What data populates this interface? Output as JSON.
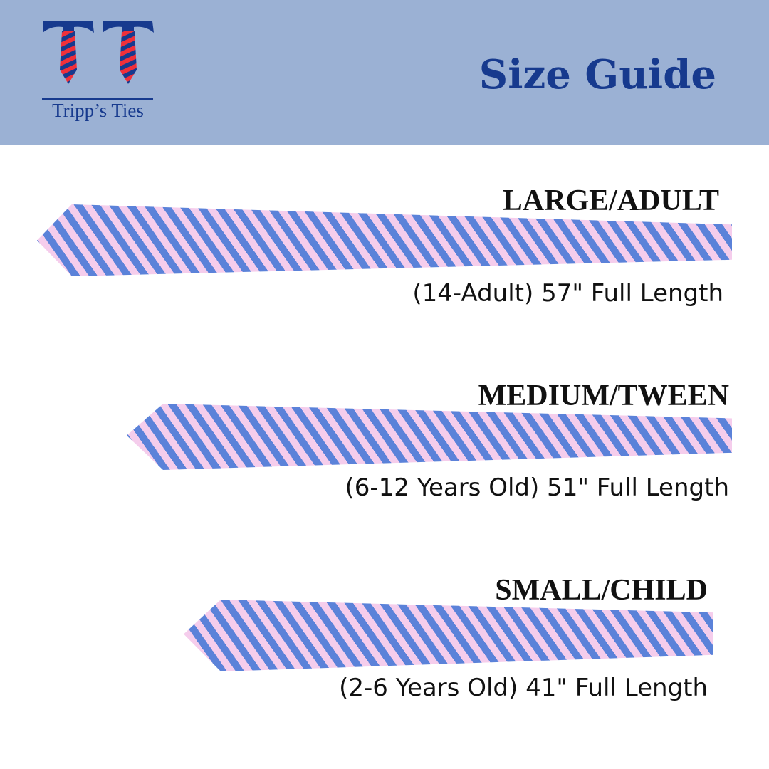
{
  "header": {
    "title": "Size Guide",
    "brand": "Tripp’s Ties",
    "colors": {
      "band": "#9bb1d4",
      "navy": "#173a8e",
      "red": "#f0303a"
    }
  },
  "sizes": [
    {
      "name": "LARGE/ADULT",
      "description": "(14-Adult) 57\" Full Length"
    },
    {
      "name": "MEDIUM/TWEEN",
      "description": "(6-12 Years Old) 51\" Full Length"
    },
    {
      "name": "SMALL/CHILD",
      "description": "(2-6 Years Old) 41\" Full Length"
    }
  ],
  "tie_colors": {
    "stripe_blue": "#5b82d9",
    "stripe_pink": "#f5cdec"
  }
}
